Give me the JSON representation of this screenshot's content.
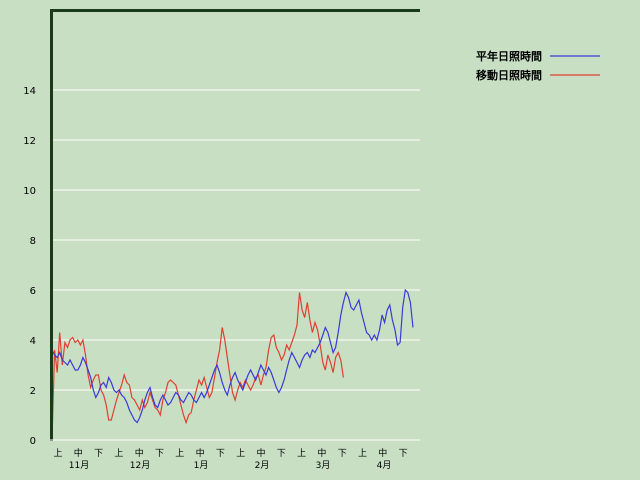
{
  "chart_data": {
    "type": "line",
    "ylim": [
      0,
      16
    ],
    "yticks": [
      0,
      2,
      4,
      6,
      8,
      10,
      12,
      14
    ],
    "grid": true,
    "legend_position": "top-right",
    "x_period_labels": [
      "上",
      "中",
      "下",
      "上",
      "中",
      "下",
      "上",
      "中",
      "下",
      "上",
      "中",
      "下",
      "上",
      "中",
      "下",
      "上",
      "中",
      "下"
    ],
    "x_month_labels": [
      "11月",
      "12月",
      "1月",
      "2月",
      "3月",
      "4月"
    ],
    "series": [
      {
        "name": "平年日照時間",
        "color": "#3a3ad8",
        "values": [
          3.6,
          3.4,
          3.3,
          3.5,
          3.2,
          3.1,
          3.0,
          3.2,
          3.0,
          2.8,
          2.8,
          3.0,
          3.3,
          3.1,
          2.8,
          2.5,
          2.0,
          1.7,
          1.9,
          2.2,
          2.3,
          2.1,
          2.5,
          2.3,
          2.0,
          1.9,
          2.0,
          1.8,
          1.7,
          1.5,
          1.2,
          1.0,
          0.8,
          0.7,
          0.9,
          1.2,
          1.6,
          1.9,
          2.1,
          1.7,
          1.4,
          1.3,
          1.6,
          1.8,
          1.6,
          1.4,
          1.5,
          1.7,
          1.9,
          1.8,
          1.6,
          1.5,
          1.7,
          1.9,
          1.8,
          1.6,
          1.5,
          1.7,
          1.9,
          1.7,
          1.9,
          2.2,
          2.5,
          2.8,
          3.0,
          2.7,
          2.3,
          2.0,
          1.8,
          2.2,
          2.5,
          2.7,
          2.4,
          2.2,
          2.0,
          2.3,
          2.6,
          2.8,
          2.6,
          2.4,
          2.7,
          3.0,
          2.8,
          2.6,
          2.9,
          2.7,
          2.4,
          2.1,
          1.9,
          2.1,
          2.4,
          2.8,
          3.2,
          3.5,
          3.3,
          3.1,
          2.9,
          3.2,
          3.4,
          3.5,
          3.3,
          3.6,
          3.5,
          3.7,
          3.9,
          4.2,
          4.5,
          4.3,
          3.9,
          3.5,
          3.7,
          4.3,
          5.0,
          5.5,
          5.9,
          5.7,
          5.3,
          5.2,
          5.4,
          5.6,
          5.1,
          4.7,
          4.3,
          4.2,
          4.0,
          4.2,
          4.0,
          4.4,
          5.0,
          4.7,
          5.2,
          5.4,
          4.8,
          4.4,
          3.8,
          3.9,
          5.3,
          6.0,
          5.9,
          5.5,
          4.5
        ]
      },
      {
        "name": "移動日照時間",
        "color": "#e04030",
        "values": [
          0.0,
          3.6,
          2.7,
          4.3,
          3.0,
          3.9,
          3.7,
          4.0,
          4.1,
          3.9,
          4.0,
          3.8,
          4.0,
          3.4,
          2.6,
          2.1,
          2.4,
          2.6,
          2.6,
          2.0,
          1.8,
          1.4,
          0.8,
          0.8,
          1.2,
          1.6,
          1.9,
          2.2,
          2.6,
          2.3,
          2.2,
          1.7,
          1.6,
          1.4,
          1.2,
          1.6,
          1.3,
          1.5,
          1.9,
          1.6,
          1.3,
          1.2,
          1.0,
          1.6,
          1.9,
          2.3,
          2.4,
          2.3,
          2.2,
          1.8,
          1.4,
          1.0,
          0.7,
          1.0,
          1.1,
          1.6,
          2.0,
          2.4,
          2.2,
          2.5,
          2.1,
          1.7,
          1.9,
          2.5,
          3.1,
          3.6,
          4.5,
          4.0,
          3.3,
          2.6,
          1.9,
          1.6,
          2.0,
          2.3,
          2.1,
          2.4,
          2.2,
          2.0,
          2.2,
          2.5,
          2.6,
          2.2,
          2.6,
          2.9,
          3.6,
          4.1,
          4.2,
          3.7,
          3.5,
          3.2,
          3.4,
          3.8,
          3.6,
          3.9,
          4.2,
          4.6,
          5.9,
          5.2,
          4.9,
          5.5,
          4.8,
          4.3,
          4.7,
          4.4,
          3.8,
          3.1,
          2.8,
          3.4,
          3.1,
          2.7,
          3.3,
          3.5,
          3.2,
          2.5
        ]
      }
    ]
  }
}
